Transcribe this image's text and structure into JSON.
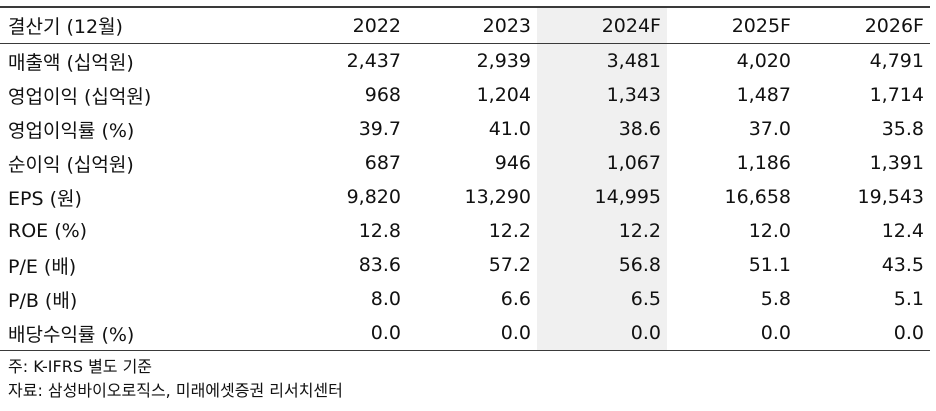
{
  "table": {
    "columns": [
      "결산기 (12월)",
      "2022",
      "2023",
      "2024F",
      "2025F",
      "2026F"
    ],
    "rows": [
      {
        "label": "매출액 (십억원)",
        "values": [
          "2,437",
          "2,939",
          "3,481",
          "4,020",
          "4,791"
        ]
      },
      {
        "label": "영업이익 (십억원)",
        "values": [
          "968",
          "1,204",
          "1,343",
          "1,487",
          "1,714"
        ]
      },
      {
        "label": "영업이익률 (%)",
        "values": [
          "39.7",
          "41.0",
          "38.6",
          "37.0",
          "35.8"
        ]
      },
      {
        "label": "순이익 (십억원)",
        "values": [
          "687",
          "946",
          "1,067",
          "1,186",
          "1,391"
        ]
      },
      {
        "label": "EPS (원)",
        "values": [
          "9,820",
          "13,290",
          "14,995",
          "16,658",
          "19,543"
        ]
      },
      {
        "label": "ROE (%)",
        "values": [
          "12.8",
          "12.2",
          "12.2",
          "12.0",
          "12.4"
        ]
      },
      {
        "label": "P/E (배)",
        "values": [
          "83.6",
          "57.2",
          "56.8",
          "51.1",
          "43.5"
        ]
      },
      {
        "label": "P/B (배)",
        "values": [
          "8.0",
          "6.6",
          "6.5",
          "5.8",
          "5.1"
        ]
      },
      {
        "label": "배당수익률 (%)",
        "values": [
          "0.0",
          "0.0",
          "0.0",
          "0.0",
          "0.0"
        ]
      }
    ],
    "highlight_color": "#f0f0f0"
  },
  "notes": {
    "basis": "주: K-IFRS 별도 기준",
    "source": "자료: 삼성바이오로직스, 미래에셋증권 리서치센터"
  }
}
